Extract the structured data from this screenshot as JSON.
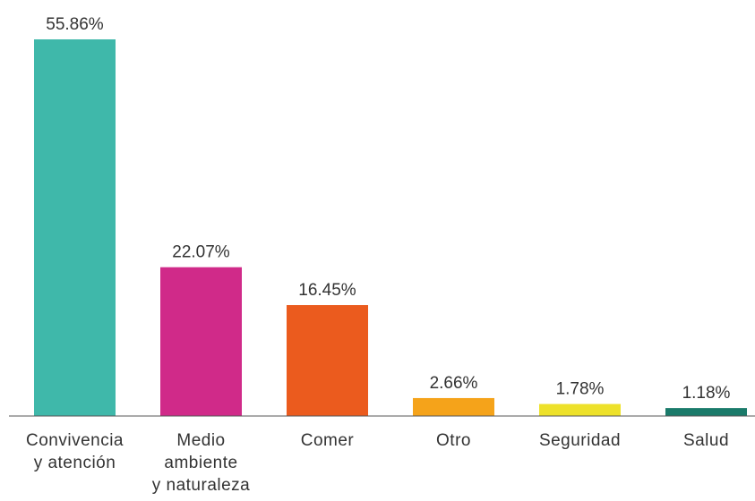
{
  "chart_data": {
    "type": "bar",
    "categories": [
      "Convivencia\ny atención",
      "Medio\nambiente\ny naturaleza",
      "Comer",
      "Otro",
      "Seguridad",
      "Salud"
    ],
    "values": [
      55.86,
      22.07,
      16.45,
      2.66,
      1.78,
      1.18
    ],
    "value_labels": [
      "55.86%",
      "22.07%",
      "16.45%",
      "2.66%",
      "1.78%",
      "1.18%"
    ],
    "colors": [
      "#3fb8aa",
      "#d02a89",
      "#eb5b1e",
      "#f5a31a",
      "#ede12a",
      "#1a7a6a"
    ]
  }
}
